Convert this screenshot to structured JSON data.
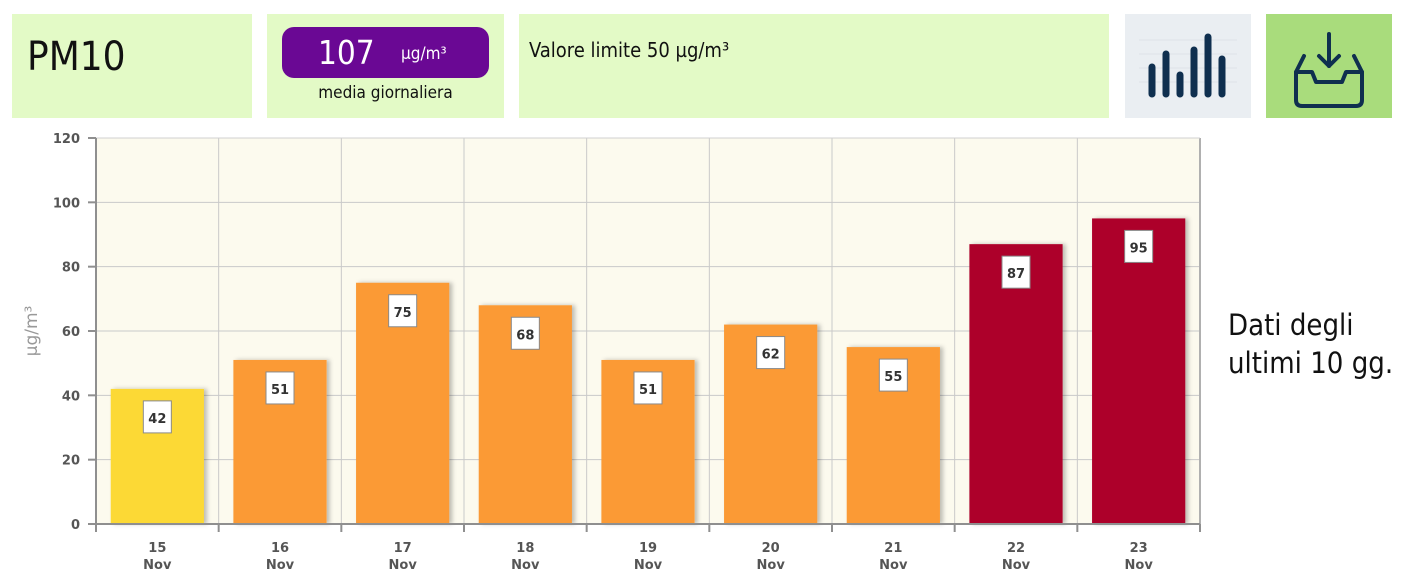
{
  "header": {
    "pollutant": "PM10",
    "value": "107",
    "value_unit": "µg/m³",
    "value_caption": "media giornaliera",
    "limit_text": "Valore limite 50 µg/m³"
  },
  "icons": {
    "chart_button": "bar-chart-icon",
    "download_button": "download-tray-icon"
  },
  "side_note": "Dati degli ultimi 10 gg.",
  "colors": {
    "panel_bg": "#e3fac6",
    "value_pill": "#6a0894",
    "plot_bg": "#fcfaee",
    "bar_yellow": "#fcd935",
    "bar_orange": "#fb9a36",
    "bar_red": "#ad002c"
  },
  "chart_data": {
    "type": "bar",
    "ylabel": "µg/m³",
    "ylim": [
      0,
      120
    ],
    "yticks": [
      0,
      20,
      40,
      60,
      80,
      100,
      120
    ],
    "grid": true,
    "categories": [
      {
        "day": "15",
        "month": "Nov"
      },
      {
        "day": "16",
        "month": "Nov"
      },
      {
        "day": "17",
        "month": "Nov"
      },
      {
        "day": "18",
        "month": "Nov"
      },
      {
        "day": "19",
        "month": "Nov"
      },
      {
        "day": "20",
        "month": "Nov"
      },
      {
        "day": "21",
        "month": "Nov"
      },
      {
        "day": "22",
        "month": "Nov"
      },
      {
        "day": "23",
        "month": "Nov"
      }
    ],
    "values": [
      42,
      51,
      75,
      68,
      51,
      62,
      55,
      87,
      95
    ],
    "bar_colors": [
      "#fcd935",
      "#fb9a36",
      "#fb9a36",
      "#fb9a36",
      "#fb9a36",
      "#fb9a36",
      "#fb9a36",
      "#ad002c",
      "#ad002c"
    ]
  }
}
